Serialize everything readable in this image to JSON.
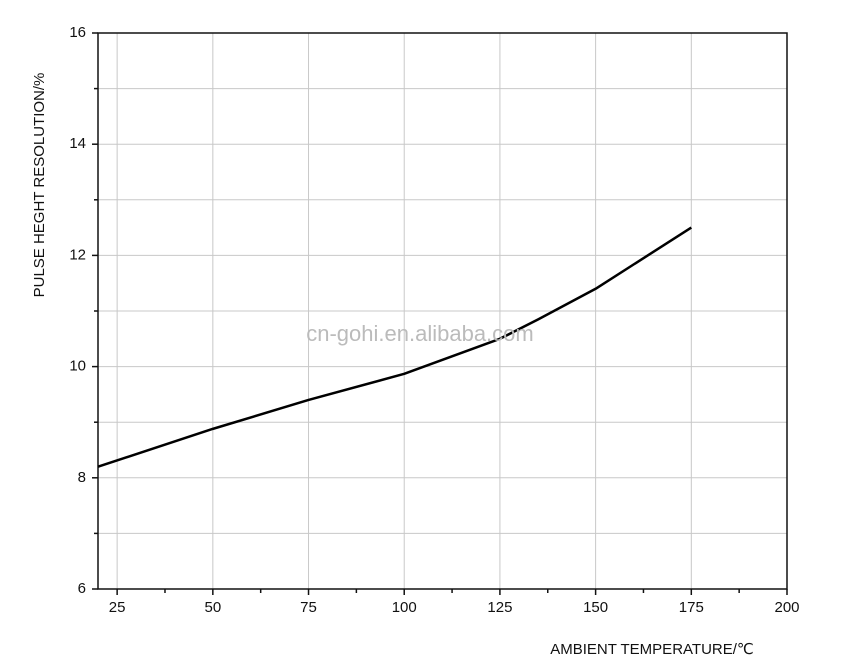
{
  "chart_data": {
    "type": "line",
    "xlabel": "AMBIENT TEMPERATURE/℃",
    "ylabel": "PULSE HEGHT RESOLUTION/%",
    "watermark": "cn-gohi.en.alibaba.com",
    "x": [
      20,
      50,
      75,
      100,
      125,
      135,
      150,
      175
    ],
    "series": [
      {
        "color": "#000000",
        "values": [
          8.2,
          8.88,
          9.4,
          9.87,
          10.5,
          10.85,
          11.4,
          12.5
        ]
      }
    ],
    "xlim": [
      20,
      200
    ],
    "xticks": [
      25,
      50,
      75,
      100,
      125,
      150,
      175,
      200
    ],
    "xminorticks": [
      37.5,
      62.5,
      87.5,
      112.5,
      137.5,
      162.5,
      187.5
    ],
    "ylim": [
      6,
      16
    ],
    "yticks": [
      6,
      8,
      10,
      12,
      14,
      16
    ],
    "yminorticks": [
      7,
      9,
      11,
      13,
      15
    ],
    "grid": true
  }
}
